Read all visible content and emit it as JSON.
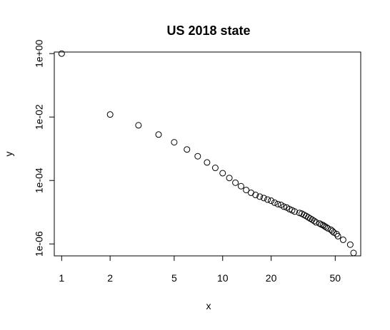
{
  "chart_data": {
    "type": "scatter",
    "title": "US 2018 state",
    "xlabel": "x",
    "ylabel": "y",
    "xscale": "log",
    "yscale": "log",
    "xlim": [
      0.9,
      72
    ],
    "ylim": [
      4.2e-07,
      1.12
    ],
    "grid": false,
    "x_ticks": [
      {
        "value": 1,
        "label": "1"
      },
      {
        "value": 2,
        "label": "2"
      },
      {
        "value": 5,
        "label": "5"
      },
      {
        "value": 10,
        "label": "10"
      },
      {
        "value": 20,
        "label": "20"
      },
      {
        "value": 50,
        "label": "50"
      }
    ],
    "y_ticks": [
      {
        "value": 1e-06,
        "label": "1e-06"
      },
      {
        "value": 0.0001,
        "label": "1e-04"
      },
      {
        "value": 0.01,
        "label": "1e-02"
      },
      {
        "value": 1,
        "label": "1e+00"
      }
    ],
    "points": [
      {
        "x": 1,
        "y": 1.0
      },
      {
        "x": 2,
        "y": 0.012
      },
      {
        "x": 3,
        "y": 0.0055
      },
      {
        "x": 4,
        "y": 0.0028
      },
      {
        "x": 5,
        "y": 0.0016
      },
      {
        "x": 6,
        "y": 0.00095
      },
      {
        "x": 7,
        "y": 0.00058
      },
      {
        "x": 8,
        "y": 0.00037
      },
      {
        "x": 9,
        "y": 0.00025
      },
      {
        "x": 10,
        "y": 0.00017
      },
      {
        "x": 11,
        "y": 0.00012
      },
      {
        "x": 12,
        "y": 8.5e-05
      },
      {
        "x": 13,
        "y": 6.6e-05
      },
      {
        "x": 14,
        "y": 5e-05
      },
      {
        "x": 15,
        "y": 4.1e-05
      },
      {
        "x": 16,
        "y": 3.5e-05
      },
      {
        "x": 17,
        "y": 3.1e-05
      },
      {
        "x": 18,
        "y": 2.8e-05
      },
      {
        "x": 19,
        "y": 2.5e-05
      },
      {
        "x": 20,
        "y": 2.3e-05
      },
      {
        "x": 21,
        "y": 2e-05
      },
      {
        "x": 22,
        "y": 1.8e-05
      },
      {
        "x": 23,
        "y": 1.7e-05
      },
      {
        "x": 24,
        "y": 1.5e-05
      },
      {
        "x": 25,
        "y": 1.4e-05
      },
      {
        "x": 26,
        "y": 1.25e-05
      },
      {
        "x": 27,
        "y": 1.15e-05
      },
      {
        "x": 28,
        "y": 1.05e-05
      },
      {
        "x": 30,
        "y": 9.5e-06
      },
      {
        "x": 31,
        "y": 9e-06
      },
      {
        "x": 32,
        "y": 8.2e-06
      },
      {
        "x": 33,
        "y": 7.6e-06
      },
      {
        "x": 34,
        "y": 6.9e-06
      },
      {
        "x": 35,
        "y": 6.3e-06
      },
      {
        "x": 36,
        "y": 5.8e-06
      },
      {
        "x": 37,
        "y": 5.3e-06
      },
      {
        "x": 38,
        "y": 4.8e-06
      },
      {
        "x": 40,
        "y": 4.4e-06
      },
      {
        "x": 41,
        "y": 4.1e-06
      },
      {
        "x": 42,
        "y": 3.9e-06
      },
      {
        "x": 43,
        "y": 3.6e-06
      },
      {
        "x": 44,
        "y": 3.35e-06
      },
      {
        "x": 45,
        "y": 3.1e-06
      },
      {
        "x": 47,
        "y": 2.8e-06
      },
      {
        "x": 48,
        "y": 2.55e-06
      },
      {
        "x": 49,
        "y": 2.3e-06
      },
      {
        "x": 51,
        "y": 2.05e-06
      },
      {
        "x": 52,
        "y": 1.75e-06
      },
      {
        "x": 56,
        "y": 1.35e-06
      },
      {
        "x": 62,
        "y": 9.5e-07
      },
      {
        "x": 65,
        "y": 5.2e-07
      }
    ]
  }
}
